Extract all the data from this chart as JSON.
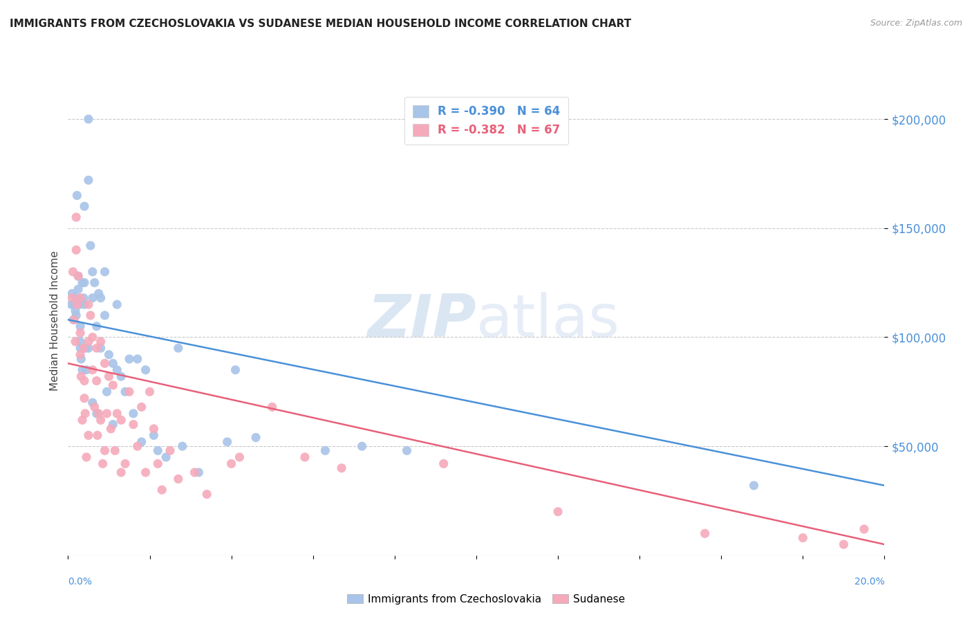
{
  "title": "IMMIGRANTS FROM CZECHOSLOVAKIA VS SUDANESE MEDIAN HOUSEHOLD INCOME CORRELATION CHART",
  "source": "Source: ZipAtlas.com",
  "ylabel": "Median Household Income",
  "y_ticks": [
    50000,
    100000,
    150000,
    200000
  ],
  "y_tick_labels": [
    "$50,000",
    "$100,000",
    "$150,000",
    "$200,000"
  ],
  "x_min": 0.0,
  "x_max": 0.2,
  "y_min": 0,
  "y_max": 215000,
  "blue_R": "-0.390",
  "blue_N": "64",
  "pink_R": "-0.382",
  "pink_N": "67",
  "blue_color": "#a8c4e8",
  "pink_color": "#f5aabb",
  "blue_line_color": "#4a90d9",
  "pink_line_color": "#e8607a",
  "legend_label_blue": "Immigrants from Czechoslovakia",
  "legend_label_pink": "Sudanese",
  "watermark_zip": "ZIP",
  "watermark_atlas": "atlas",
  "background_color": "#ffffff",
  "grid_color": "#bbbbbb",
  "blue_scatter_x": [
    0.0008,
    0.001,
    0.0013,
    0.0015,
    0.0018,
    0.002,
    0.002,
    0.0022,
    0.0025,
    0.0025,
    0.0028,
    0.003,
    0.003,
    0.003,
    0.0032,
    0.0035,
    0.0035,
    0.0038,
    0.004,
    0.004,
    0.004,
    0.0042,
    0.0045,
    0.005,
    0.005,
    0.005,
    0.0055,
    0.006,
    0.006,
    0.006,
    0.0065,
    0.007,
    0.007,
    0.0075,
    0.008,
    0.008,
    0.009,
    0.009,
    0.0095,
    0.01,
    0.011,
    0.011,
    0.012,
    0.012,
    0.013,
    0.014,
    0.015,
    0.016,
    0.017,
    0.018,
    0.019,
    0.021,
    0.022,
    0.024,
    0.027,
    0.028,
    0.032,
    0.039,
    0.041,
    0.046,
    0.063,
    0.072,
    0.083,
    0.168
  ],
  "blue_scatter_y": [
    115000,
    120000,
    108000,
    115000,
    112000,
    118000,
    110000,
    165000,
    128000,
    122000,
    115000,
    105000,
    98000,
    95000,
    90000,
    125000,
    85000,
    118000,
    160000,
    125000,
    115000,
    95000,
    85000,
    200000,
    172000,
    95000,
    142000,
    130000,
    118000,
    70000,
    125000,
    105000,
    65000,
    120000,
    118000,
    95000,
    130000,
    110000,
    75000,
    92000,
    88000,
    60000,
    115000,
    85000,
    82000,
    75000,
    90000,
    65000,
    90000,
    52000,
    85000,
    55000,
    48000,
    45000,
    95000,
    50000,
    38000,
    52000,
    85000,
    54000,
    48000,
    50000,
    48000,
    32000
  ],
  "pink_scatter_x": [
    0.001,
    0.0012,
    0.0015,
    0.0018,
    0.002,
    0.002,
    0.0022,
    0.0025,
    0.003,
    0.003,
    0.003,
    0.0032,
    0.0035,
    0.0038,
    0.004,
    0.004,
    0.0042,
    0.0045,
    0.005,
    0.005,
    0.005,
    0.0055,
    0.006,
    0.006,
    0.0065,
    0.007,
    0.007,
    0.0072,
    0.0075,
    0.008,
    0.008,
    0.0085,
    0.009,
    0.009,
    0.0095,
    0.01,
    0.0105,
    0.011,
    0.0115,
    0.012,
    0.013,
    0.013,
    0.014,
    0.015,
    0.016,
    0.017,
    0.018,
    0.019,
    0.02,
    0.021,
    0.022,
    0.023,
    0.025,
    0.027,
    0.031,
    0.034,
    0.04,
    0.042,
    0.05,
    0.058,
    0.067,
    0.092,
    0.12,
    0.156,
    0.18,
    0.19,
    0.195
  ],
  "pink_scatter_y": [
    118000,
    130000,
    108000,
    98000,
    155000,
    140000,
    115000,
    128000,
    102000,
    92000,
    118000,
    82000,
    62000,
    95000,
    80000,
    72000,
    65000,
    45000,
    115000,
    98000,
    55000,
    110000,
    100000,
    85000,
    68000,
    95000,
    80000,
    55000,
    65000,
    98000,
    62000,
    42000,
    88000,
    48000,
    65000,
    82000,
    58000,
    78000,
    48000,
    65000,
    62000,
    38000,
    42000,
    75000,
    60000,
    50000,
    68000,
    38000,
    75000,
    58000,
    42000,
    30000,
    48000,
    35000,
    38000,
    28000,
    42000,
    45000,
    68000,
    45000,
    40000,
    42000,
    20000,
    10000,
    8000,
    5000,
    12000
  ],
  "blue_line_x0": 0.0,
  "blue_line_x1": 0.2,
  "blue_line_y0": 108000,
  "blue_line_y1": 32000,
  "pink_line_x0": 0.0,
  "pink_line_x1": 0.2,
  "pink_line_y0": 88000,
  "pink_line_y1": 5000
}
